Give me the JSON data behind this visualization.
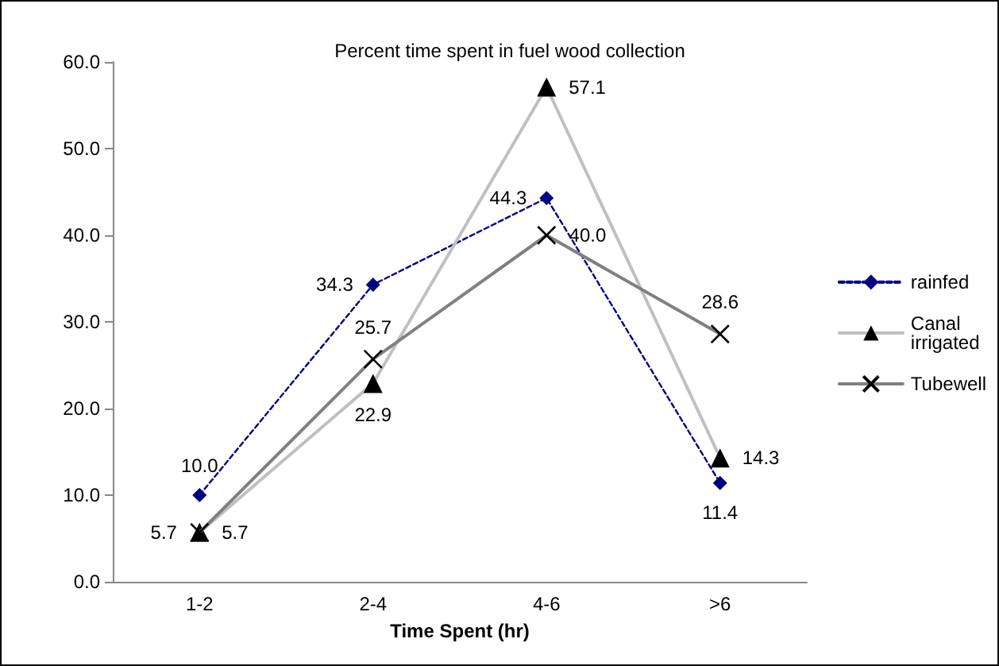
{
  "chart_data": {
    "type": "line",
    "title": "Percent time spent in fuel wood collection",
    "xlabel": "Time Spent (hr)",
    "categories": [
      "1-2",
      "2-4",
      "4-6",
      ">6"
    ],
    "series": [
      {
        "name": "rainfed",
        "color": "#000080",
        "marker": "diamond",
        "line_style": "dotted",
        "values": [
          10.0,
          34.3,
          44.3,
          11.4
        ],
        "value_labels": [
          "10.0",
          "34.3",
          "44.3",
          "11.4"
        ]
      },
      {
        "name": "Canal irrigated",
        "color": "#c0c0c0",
        "marker": "triangle",
        "line_style": "solid",
        "values": [
          5.7,
          22.9,
          57.1,
          14.3
        ],
        "value_labels": [
          "5.7",
          "22.9",
          "57.1",
          "14.3"
        ]
      },
      {
        "name": "Tubewell",
        "color": "#808080",
        "marker": "cross",
        "line_style": "solid",
        "values": [
          5.7,
          25.7,
          40.0,
          28.6
        ],
        "value_labels": [
          "5.7",
          "25.7",
          "40.0",
          "28.6"
        ]
      }
    ],
    "ylim": [
      0,
      60
    ],
    "yticks": [
      {
        "value": 0,
        "label": "0.0"
      },
      {
        "value": 10,
        "label": "10.0"
      },
      {
        "value": 20,
        "label": "20.0"
      },
      {
        "value": 30,
        "label": "30.0"
      },
      {
        "value": 40,
        "label": "40.0"
      },
      {
        "value": 50,
        "label": "50.0"
      },
      {
        "value": 60,
        "label": "60.0"
      }
    ],
    "grid": false,
    "legend": "right"
  }
}
